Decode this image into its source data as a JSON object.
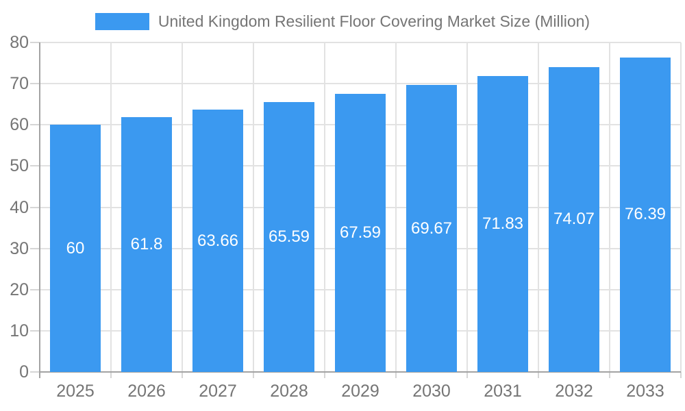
{
  "chart_data": {
    "type": "bar",
    "title": "United Kingdom Resilient Floor Covering Market Size (Million)",
    "categories": [
      "2025",
      "2026",
      "2027",
      "2028",
      "2029",
      "2030",
      "2031",
      "2032",
      "2033"
    ],
    "values": [
      60,
      61.8,
      63.66,
      65.59,
      67.59,
      69.67,
      71.83,
      74.07,
      76.39
    ],
    "value_labels": [
      "60",
      "61.8",
      "63.66",
      "65.59",
      "67.59",
      "69.67",
      "71.83",
      "74.07",
      "76.39"
    ],
    "xlabel": "",
    "ylabel": "",
    "ylim": [
      0,
      80
    ],
    "y_ticks": [
      0,
      10,
      20,
      30,
      40,
      50,
      60,
      70,
      80
    ],
    "grid": true,
    "legend_position": "top-center",
    "colors": {
      "bar": "#3B99F0",
      "value_label": "#FFFFFF",
      "text": "#757575",
      "grid": "#E2E2E2",
      "tick": "#D6D6D6",
      "axis": "#A3A3A3",
      "background": "#FFFFFF"
    }
  }
}
